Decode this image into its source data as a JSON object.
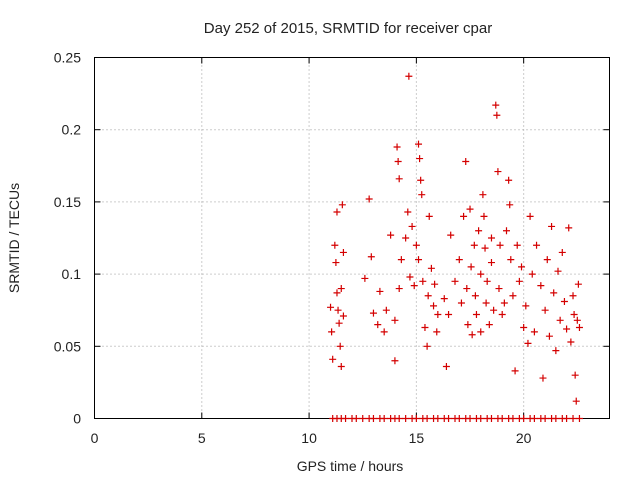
{
  "chart_data": {
    "type": "scatter",
    "title": "Day 252 of 2015, SRMTID for receiver cpar",
    "xlabel": "GPS time / hours",
    "ylabel": "SRMTID / TECUs",
    "xlim": [
      0,
      24
    ],
    "ylim": [
      0,
      0.25
    ],
    "xticks": [
      0,
      5,
      10,
      15,
      20
    ],
    "xtick_labels": [
      "0",
      "5",
      "10",
      "15",
      "20"
    ],
    "yticks": [
      0,
      0.05,
      0.1,
      0.15,
      0.2,
      0.25
    ],
    "ytick_labels": [
      "0",
      "0.05",
      "0.1",
      "0.15",
      "0.2",
      "0.25"
    ],
    "grid": true,
    "marker": "+",
    "colors": {
      "series": "#d40000",
      "axis": "#000000",
      "grid": "#9a9a9a"
    },
    "series": [
      {
        "name": "SRMTID",
        "points": [
          [
            11.0,
            0.077
          ],
          [
            11.05,
            0.06
          ],
          [
            11.1,
            0.041
          ],
          [
            11.2,
            0.12
          ],
          [
            11.25,
            0.108
          ],
          [
            11.3,
            0.143
          ],
          [
            11.3,
            0.087
          ],
          [
            11.35,
            0.075
          ],
          [
            11.4,
            0.066
          ],
          [
            11.45,
            0.05
          ],
          [
            11.5,
            0.036
          ],
          [
            11.5,
            0.09
          ],
          [
            11.55,
            0.148
          ],
          [
            11.6,
            0.071
          ],
          [
            11.6,
            0.115
          ],
          [
            12.6,
            0.097
          ],
          [
            12.8,
            0.152
          ],
          [
            12.9,
            0.112
          ],
          [
            13.0,
            0.073
          ],
          [
            13.2,
            0.065
          ],
          [
            13.3,
            0.088
          ],
          [
            13.5,
            0.06
          ],
          [
            13.6,
            0.075
          ],
          [
            13.8,
            0.127
          ],
          [
            14.0,
            0.068
          ],
          [
            14.0,
            0.04
          ],
          [
            14.1,
            0.188
          ],
          [
            14.15,
            0.178
          ],
          [
            14.2,
            0.166
          ],
          [
            14.2,
            0.09
          ],
          [
            14.3,
            0.11
          ],
          [
            14.5,
            0.125
          ],
          [
            14.6,
            0.143
          ],
          [
            14.65,
            0.237
          ],
          [
            14.7,
            0.098
          ],
          [
            14.8,
            0.133
          ],
          [
            14.9,
            0.092
          ],
          [
            15.0,
            0.12
          ],
          [
            15.1,
            0.11
          ],
          [
            15.1,
            0.19
          ],
          [
            15.15,
            0.18
          ],
          [
            15.2,
            0.165
          ],
          [
            15.25,
            0.155
          ],
          [
            15.3,
            0.095
          ],
          [
            15.4,
            0.063
          ],
          [
            15.5,
            0.05
          ],
          [
            15.55,
            0.085
          ],
          [
            15.6,
            0.14
          ],
          [
            15.7,
            0.104
          ],
          [
            15.8,
            0.078
          ],
          [
            15.85,
            0.093
          ],
          [
            15.95,
            0.06
          ],
          [
            16.0,
            0.072
          ],
          [
            16.3,
            0.083
          ],
          [
            16.4,
            0.036
          ],
          [
            16.5,
            0.072
          ],
          [
            16.6,
            0.127
          ],
          [
            16.8,
            0.095
          ],
          [
            17.0,
            0.11
          ],
          [
            17.1,
            0.08
          ],
          [
            17.2,
            0.14
          ],
          [
            17.3,
            0.178
          ],
          [
            17.35,
            0.09
          ],
          [
            17.4,
            0.065
          ],
          [
            17.5,
            0.145
          ],
          [
            17.55,
            0.105
          ],
          [
            17.6,
            0.058
          ],
          [
            17.7,
            0.12
          ],
          [
            17.75,
            0.085
          ],
          [
            17.8,
            0.072
          ],
          [
            17.9,
            0.13
          ],
          [
            18.0,
            0.1
          ],
          [
            18.0,
            0.06
          ],
          [
            18.1,
            0.155
          ],
          [
            18.15,
            0.14
          ],
          [
            18.2,
            0.118
          ],
          [
            18.25,
            0.08
          ],
          [
            18.3,
            0.095
          ],
          [
            18.4,
            0.065
          ],
          [
            18.5,
            0.125
          ],
          [
            18.5,
            0.108
          ],
          [
            18.6,
            0.075
          ],
          [
            18.7,
            0.217
          ],
          [
            18.75,
            0.21
          ],
          [
            18.8,
            0.171
          ],
          [
            18.85,
            0.09
          ],
          [
            18.9,
            0.12
          ],
          [
            19.0,
            0.072
          ],
          [
            19.1,
            0.08
          ],
          [
            19.2,
            0.13
          ],
          [
            19.3,
            0.165
          ],
          [
            19.35,
            0.148
          ],
          [
            19.4,
            0.11
          ],
          [
            19.5,
            0.085
          ],
          [
            19.6,
            0.033
          ],
          [
            19.7,
            0.12
          ],
          [
            19.8,
            0.095
          ],
          [
            19.9,
            0.105
          ],
          [
            20.0,
            0.063
          ],
          [
            20.1,
            0.078
          ],
          [
            20.2,
            0.052
          ],
          [
            20.3,
            0.14
          ],
          [
            20.4,
            0.1
          ],
          [
            20.5,
            0.06
          ],
          [
            20.6,
            0.12
          ],
          [
            20.8,
            0.092
          ],
          [
            20.9,
            0.028
          ],
          [
            21.0,
            0.075
          ],
          [
            21.1,
            0.11
          ],
          [
            21.2,
            0.057
          ],
          [
            21.3,
            0.133
          ],
          [
            21.4,
            0.087
          ],
          [
            21.5,
            0.047
          ],
          [
            21.6,
            0.102
          ],
          [
            21.7,
            0.068
          ],
          [
            21.8,
            0.115
          ],
          [
            21.9,
            0.081
          ],
          [
            22.0,
            0.062
          ],
          [
            22.1,
            0.132
          ],
          [
            22.2,
            0.053
          ],
          [
            22.3,
            0.085
          ],
          [
            22.35,
            0.072
          ],
          [
            22.4,
            0.03
          ],
          [
            22.45,
            0.012
          ],
          [
            22.5,
            0.068
          ],
          [
            22.55,
            0.093
          ],
          [
            22.6,
            0.063
          ]
        ],
        "zero_x": [
          11.1,
          11.3,
          11.5,
          11.7,
          12.0,
          12.2,
          12.5,
          12.8,
          13.0,
          13.3,
          13.5,
          13.8,
          14.0,
          14.2,
          14.5,
          14.8,
          15.0,
          15.3,
          15.5,
          15.8,
          16.0,
          16.3,
          16.5,
          16.8,
          17.0,
          17.3,
          17.5,
          17.8,
          18.0,
          18.3,
          18.5,
          18.8,
          19.0,
          19.3,
          19.5,
          19.8,
          20.0,
          20.3,
          20.5,
          20.8,
          21.0,
          21.3,
          21.5,
          21.8,
          22.0,
          22.3,
          22.6
        ]
      }
    ]
  }
}
